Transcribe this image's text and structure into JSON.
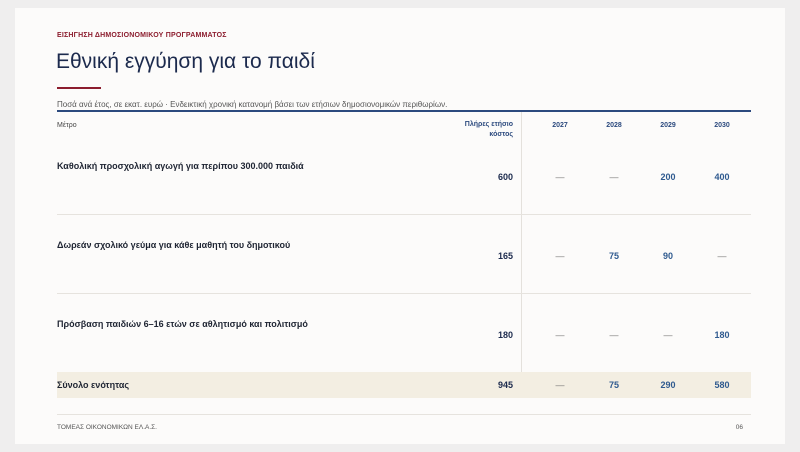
{
  "header": {
    "kicker": "ΕΙΣΗΓΗΣΗ ΔΗΜΟΣΙΟΝΟΜΙΚΟΥ ΠΡΟΓΡΑΜΜΑΤΟΣ",
    "title": "Εθνική εγγύηση για το παιδί",
    "subtitle": "Ποσά ανά έτος, σε εκατ. ευρώ · Ενδεικτική χρονική κατανομή βάσει των ετήσιων δημοσιονομικών περιθωρίων."
  },
  "table": {
    "columns": [
      "Μέτρο",
      "Πλήρες ετήσιο κόστος",
      "2027",
      "2028",
      "2029",
      "2030"
    ],
    "rows": [
      [
        "Καθολική προσχολική αγωγή για περίπου 300.000 παιδιά",
        "600",
        "—",
        "—",
        "200",
        "400"
      ],
      [
        "Δωρεάν σχολικό γεύμα για κάθε μαθητή του δημοτικού",
        "165",
        "—",
        "75",
        "90",
        "—"
      ],
      [
        "Πρόσβαση παιδιών 6–16 ετών σε αθλητισμό και πολιτισμό",
        "180",
        "—",
        "—",
        "—",
        "180"
      ]
    ],
    "total": [
      "Σύνολο ενότητας",
      "945",
      "—",
      "75",
      "290",
      "580"
    ]
  },
  "footer": {
    "left": "ΤΟΜΕΑΣ ΟΙΚΟΝΟΜΙΚΩΝ ΕΛ.Α.Σ.",
    "page": "06"
  }
}
